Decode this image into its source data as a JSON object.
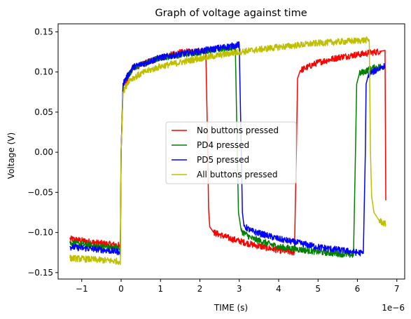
{
  "chart_data": {
    "type": "line",
    "title": "Graph of voltage against time",
    "xlabel": "TIME (s)",
    "ylabel": "Voltage (V)",
    "x_offset_label": "1e−6",
    "xlim": [
      -1.6,
      7.2
    ],
    "ylim": [
      -0.158,
      0.16
    ],
    "xticks": [
      -1,
      0,
      1,
      2,
      3,
      4,
      5,
      6,
      7
    ],
    "xtick_labels": [
      "−1",
      "0",
      "1",
      "2",
      "3",
      "4",
      "5",
      "6",
      "7"
    ],
    "yticks": [
      -0.15,
      -0.1,
      -0.05,
      0.0,
      0.05,
      0.1,
      0.15
    ],
    "ytick_labels": [
      "−0.15",
      "−0.10",
      "−0.05",
      "0.00",
      "0.05",
      "0.10",
      "0.15"
    ],
    "grid": false,
    "legend_position": "center-right",
    "series": [
      {
        "name": "No buttons pressed",
        "color": "#ff0000",
        "x": [
          -1.3,
          -0.6,
          -0.05,
          -0.02,
          0.0,
          0.05,
          0.3,
          1.0,
          1.5,
          2.15,
          2.2,
          2.22,
          2.25,
          2.35,
          2.8,
          3.4,
          4.0,
          4.4,
          4.45,
          4.48,
          4.55,
          5.0,
          5.6,
          6.2,
          6.6,
          6.7,
          6.72
        ],
        "y": [
          -0.108,
          -0.113,
          -0.116,
          -0.12,
          0.0,
          0.082,
          0.105,
          0.118,
          0.124,
          0.127,
          0.0,
          -0.07,
          -0.093,
          -0.1,
          -0.108,
          -0.116,
          -0.122,
          -0.125,
          0.0,
          0.092,
          0.102,
          0.112,
          0.119,
          0.123,
          0.126,
          0.127,
          -0.06
        ]
      },
      {
        "name": "PD4 pressed",
        "color": "#008000",
        "x": [
          -1.3,
          -0.6,
          -0.05,
          -0.02,
          0.0,
          0.05,
          0.3,
          1.0,
          2.0,
          2.9,
          2.95,
          2.98,
          3.05,
          3.3,
          4.0,
          5.0,
          5.9,
          5.95,
          5.98,
          6.05,
          6.4,
          6.7
        ],
        "y": [
          -0.113,
          -0.117,
          -0.12,
          -0.125,
          0.0,
          0.085,
          0.105,
          0.118,
          0.125,
          0.131,
          0.0,
          -0.075,
          -0.098,
          -0.107,
          -0.118,
          -0.124,
          -0.128,
          0.0,
          0.085,
          0.098,
          0.105,
          0.108
        ]
      },
      {
        "name": "PD5 pressed",
        "color": "#0000ff",
        "x": [
          -1.3,
          -0.6,
          -0.05,
          -0.02,
          0.0,
          0.05,
          0.3,
          1.0,
          2.0,
          3.0,
          3.05,
          3.08,
          3.12,
          3.3,
          4.0,
          5.0,
          6.15,
          6.2,
          6.22,
          6.28,
          6.5,
          6.7
        ],
        "y": [
          -0.118,
          -0.121,
          -0.124,
          -0.128,
          0.0,
          0.086,
          0.106,
          0.118,
          0.126,
          0.134,
          0.0,
          -0.075,
          -0.092,
          -0.098,
          -0.108,
          -0.118,
          -0.126,
          0.0,
          0.085,
          0.097,
          0.103,
          0.108
        ]
      },
      {
        "name": "All buttons pressed",
        "color": "#bfbf00",
        "x": [
          -1.3,
          -0.6,
          -0.05,
          -0.02,
          0.0,
          0.05,
          0.2,
          0.6,
          1.0,
          2.0,
          3.0,
          4.0,
          5.0,
          6.0,
          6.3,
          6.33,
          6.36,
          6.42,
          6.55,
          6.72
        ],
        "y": [
          -0.132,
          -0.134,
          -0.136,
          -0.14,
          0.0,
          0.075,
          0.09,
          0.1,
          0.107,
          0.117,
          0.125,
          0.131,
          0.136,
          0.139,
          0.14,
          0.0,
          -0.055,
          -0.075,
          -0.085,
          -0.09
        ]
      }
    ]
  }
}
